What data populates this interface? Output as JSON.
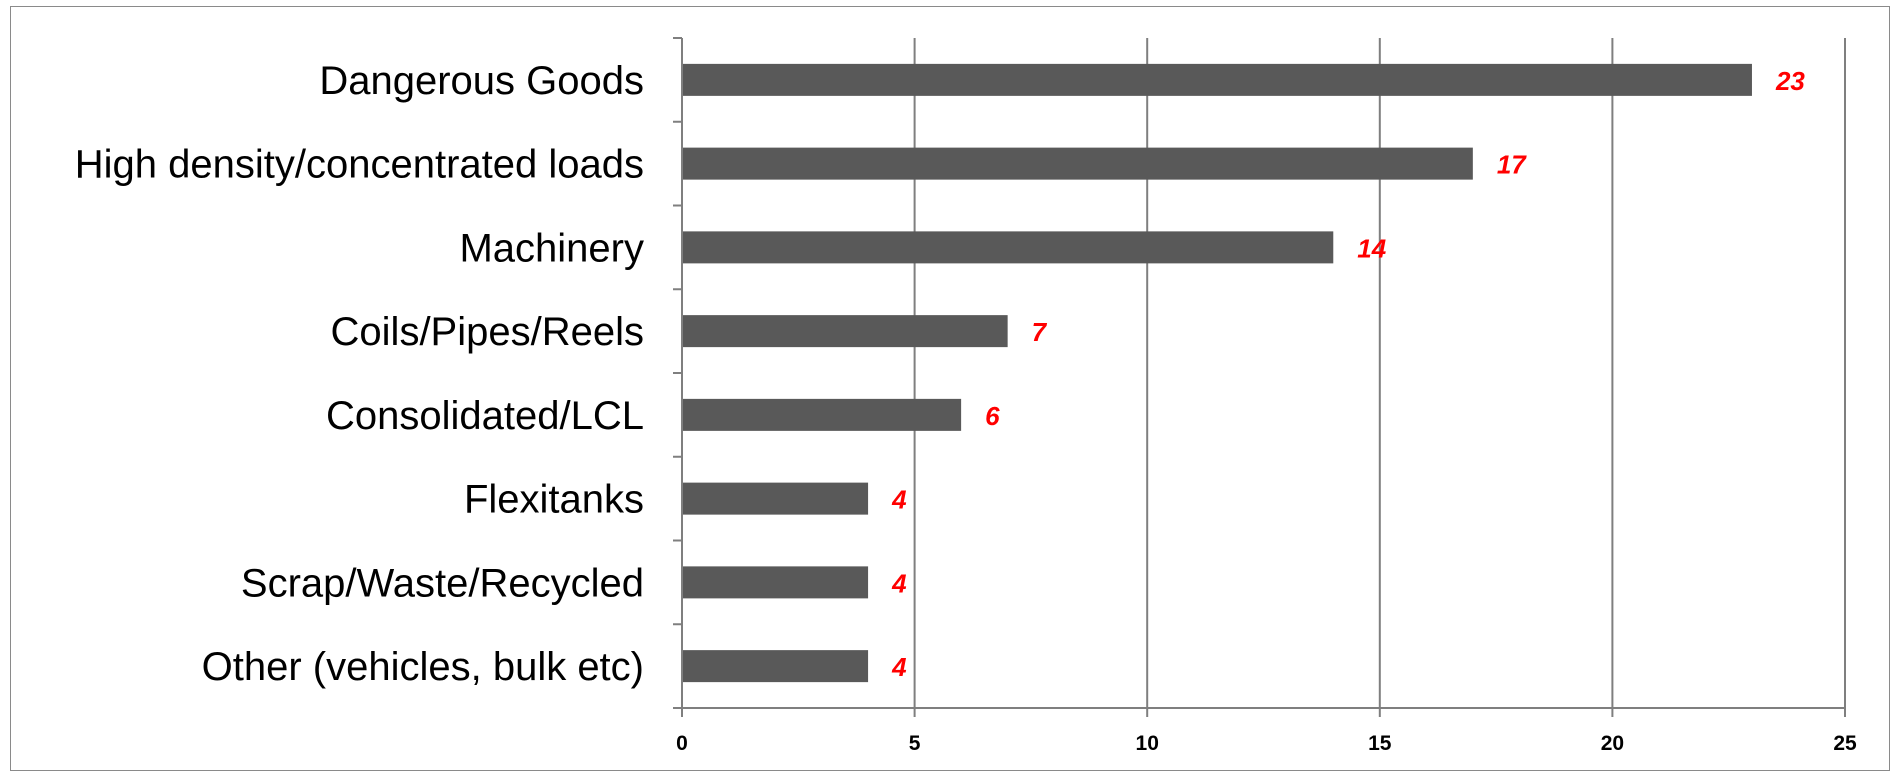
{
  "chart_data": {
    "type": "bar",
    "orientation": "horizontal",
    "title": "",
    "xlabel": "",
    "ylabel": "",
    "categories": [
      "Dangerous Goods",
      "High density/concentrated loads",
      "Machinery",
      "Coils/Pipes/Reels",
      "Consolidated/LCL",
      "Flexitanks",
      "Scrap/Waste/Recycled",
      "Other (vehicles, bulk etc)"
    ],
    "values": [
      23,
      17,
      14,
      7,
      6,
      4,
      4,
      4
    ],
    "data_labels": [
      "23",
      "17",
      "14",
      "7",
      "6",
      "4",
      "4",
      "4"
    ],
    "xlim": [
      0,
      25
    ],
    "x_ticks": [
      0,
      5,
      10,
      15,
      20,
      25
    ],
    "x_tick_labels": [
      "0",
      "5",
      "10",
      "15",
      "20",
      "25"
    ],
    "grid": "vertical",
    "legend": "none",
    "bar_color": "#595959",
    "data_label_color": "#ff0000",
    "grid_color": "#7f7f7f",
    "axis_color": "#7f7f7f"
  }
}
